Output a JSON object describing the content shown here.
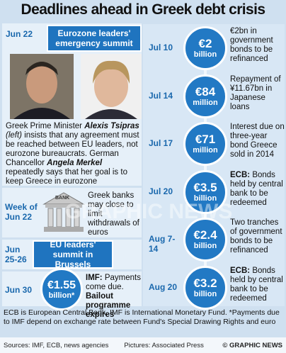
{
  "title": "Deadlines ahead in Greek debt crisis",
  "left": [
    {
      "date": "Jun 22",
      "heading": "Eurozone leaders' emergency summit",
      "text": [
        "Greek Prime Minister ",
        "Alexis Tsipras",
        " (left)",
        " insists that any agreement must be reached between EU leaders, not eurozone bureaucrats. German Chancellor ",
        "Angela Merkel",
        " repeatedly says that her goal is to keep Greece in eurozone"
      ]
    },
    {
      "date": "Week of Jun 22",
      "icon_label": "BANK",
      "text": [
        "Greek banks may close to limit withdrawals of euros"
      ]
    },
    {
      "date": "Jun 25-26",
      "heading": "EU leaders' summit in Brussels"
    },
    {
      "date": "Jun 30",
      "amount": "€1.55",
      "unit": "billion*",
      "text": [
        "IMF:",
        " Payments come due. ",
        "Bailout programme expires"
      ]
    }
  ],
  "right": [
    {
      "date": "Jul 10",
      "amount": "€2",
      "unit": "billion",
      "text": [
        "€2bn in government bonds to be refinanced"
      ]
    },
    {
      "date": "Jul 14",
      "amount": "€84",
      "unit": "million",
      "text": [
        "Repayment of ¥11.67bn in Japanese loans"
      ]
    },
    {
      "date": "Jul 17",
      "amount": "€71",
      "unit": "million",
      "text": [
        "Interest due on three-year bond Greece sold in 2014"
      ]
    },
    {
      "date": "Jul 20",
      "amount": "€3.5",
      "unit": "billion",
      "text": [
        "ECB:",
        " Bonds held by central bank to be redeemed"
      ]
    },
    {
      "date": "Aug 7-14",
      "amount": "€2.4",
      "unit": "billion",
      "text": [
        "Two tranches of government bonds to be refinanced"
      ]
    },
    {
      "date": "Aug 20",
      "amount": "€3.2",
      "unit": "billion",
      "text": [
        "ECB:",
        " Bonds held by central bank to be redeemed"
      ]
    }
  ],
  "watermark": "GRAPHIC NEWS",
  "note": "ECB is European Central Bank, IMF is International Monetary Fund. *Payments due to IMF depend on exchange rate between Fund's Special Drawing Rights and euro",
  "sources": "Sources: IMF, ECB, news agencies",
  "pictures": "Pictures: Associated Press",
  "credit": "© GRAPHIC NEWS"
}
